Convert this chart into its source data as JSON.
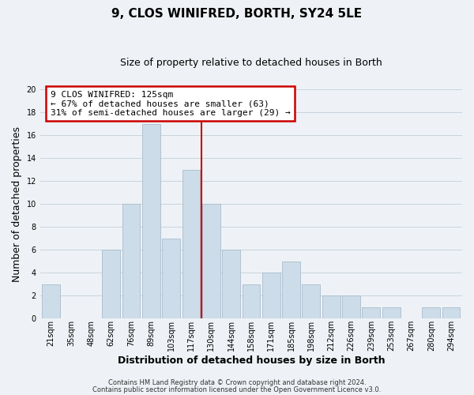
{
  "title": "9, CLOS WINIFRED, BORTH, SY24 5LE",
  "subtitle": "Size of property relative to detached houses in Borth",
  "xlabel": "Distribution of detached houses by size in Borth",
  "ylabel": "Number of detached properties",
  "bar_labels": [
    "21sqm",
    "35sqm",
    "48sqm",
    "62sqm",
    "76sqm",
    "89sqm",
    "103sqm",
    "117sqm",
    "130sqm",
    "144sqm",
    "158sqm",
    "171sqm",
    "185sqm",
    "198sqm",
    "212sqm",
    "226sqm",
    "239sqm",
    "253sqm",
    "267sqm",
    "280sqm",
    "294sqm"
  ],
  "bar_values": [
    3,
    0,
    0,
    6,
    10,
    17,
    7,
    13,
    10,
    6,
    3,
    4,
    5,
    3,
    2,
    2,
    1,
    1,
    0,
    1,
    1
  ],
  "bar_color": "#ccdce8",
  "bar_edge_color": "#aabccc",
  "vline_x_index": 7.5,
  "vline_color": "#cc0000",
  "ylim": [
    0,
    20
  ],
  "yticks": [
    0,
    2,
    4,
    6,
    8,
    10,
    12,
    14,
    16,
    18,
    20
  ],
  "grid_color": "#c8d4dc",
  "annotation_title": "9 CLOS WINIFRED: 125sqm",
  "annotation_line1": "← 67% of detached houses are smaller (63)",
  "annotation_line2": "31% of semi-detached houses are larger (29) →",
  "annotation_box_facecolor": "#ffffff",
  "annotation_box_edgecolor": "#cc0000",
  "footnote1": "Contains HM Land Registry data © Crown copyright and database right 2024.",
  "footnote2": "Contains public sector information licensed under the Open Government Licence v3.0.",
  "background_color": "#eef2f6",
  "plot_background_color": "#eef2f6",
  "title_fontsize": 11,
  "subtitle_fontsize": 9,
  "xlabel_fontsize": 9,
  "ylabel_fontsize": 9,
  "tick_fontsize": 7,
  "annotation_fontsize": 8,
  "footnote_fontsize": 6
}
